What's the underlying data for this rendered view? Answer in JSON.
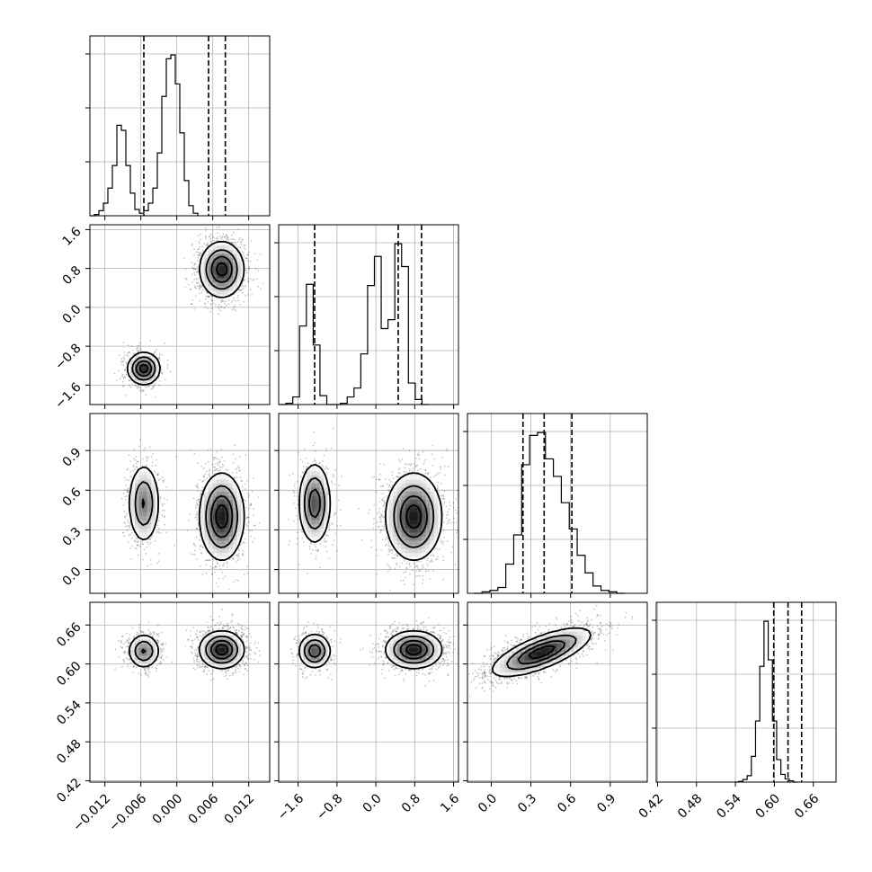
{
  "chart_data": {
    "type": "corner",
    "title": "",
    "parameters": [
      {
        "index": 0,
        "xlabel": "",
        "range": [
          -0.0145,
          0.0155
        ],
        "ticks": [
          -0.012,
          -0.006,
          0.0,
          0.006,
          0.012
        ],
        "tick_labels": [
          "−0.012",
          "−0.006",
          "0.000",
          "0.006",
          "0.012"
        ]
      },
      {
        "index": 1,
        "xlabel": "",
        "range": [
          -2.0,
          1.7
        ],
        "ticks": [
          -1.6,
          -0.8,
          0.0,
          0.8,
          1.6
        ],
        "tick_labels": [
          "−1.6",
          "−0.8",
          "0.0",
          "0.8",
          "1.6"
        ]
      },
      {
        "index": 2,
        "xlabel": "",
        "range": [
          -0.18,
          1.18
        ],
        "ticks": [
          0.0,
          0.3,
          0.6,
          0.9
        ],
        "tick_labels": [
          "0.0",
          "0.3",
          "0.6",
          "0.9"
        ]
      },
      {
        "index": 3,
        "xlabel": "",
        "range": [
          0.418,
          0.695
        ],
        "ticks": [
          0.42,
          0.48,
          0.54,
          0.6,
          0.66
        ],
        "tick_labels": [
          "0.42",
          "0.48",
          "0.54",
          "0.60",
          "0.66"
        ]
      }
    ],
    "y_tick_labels": {
      "1": [
        "−1.6",
        "−0.8",
        "0.0",
        "0.8",
        "1.6"
      ],
      "2": [
        "0.0",
        "0.3",
        "0.6",
        "0.9"
      ],
      "3": [
        "0.42",
        "0.48",
        "0.54",
        "0.60",
        "0.66"
      ]
    },
    "histograms": [
      {
        "param": 0,
        "bin_start": -0.0145,
        "bin_width": 0.00075,
        "counts": [
          0,
          1,
          4,
          10,
          22,
          40,
          72,
          68,
          40,
          18,
          5,
          2,
          4,
          10,
          22,
          50,
          95,
          125,
          128,
          105,
          66,
          28,
          8,
          2
        ],
        "quantiles": [
          -0.0055,
          0.0053,
          0.0081
        ]
      },
      {
        "param": 1,
        "bin_start": -1.99,
        "bin_width": 0.14,
        "counts": [
          0,
          1,
          6,
          62,
          95,
          47,
          7,
          0,
          0,
          1,
          6,
          13,
          40,
          94,
          117,
          60,
          67,
          127,
          109,
          17,
          4,
          0
        ],
        "quantiles": [
          -1.26,
          0.46,
          0.94
        ]
      },
      {
        "param": 2,
        "bin_start": -0.13,
        "bin_width": 0.06,
        "counts": [
          0,
          1,
          2,
          4,
          20,
          40,
          88,
          108,
          110,
          92,
          80,
          62,
          44,
          26,
          14,
          5,
          2,
          1,
          0
        ],
        "quantiles": [
          0.24,
          0.4,
          0.61
        ]
      },
      {
        "param": 3,
        "bin_start": 0.5385,
        "bin_width": 0.0065,
        "counts": [
          0,
          1,
          4,
          10,
          40,
          95,
          180,
          250,
          190,
          95,
          35,
          12,
          5,
          2,
          0
        ],
        "quantiles": [
          0.599,
          0.621,
          0.642
        ]
      }
    ],
    "modes": [
      {
        "weight": 0.3,
        "means": [
          -0.0055,
          -1.26,
          0.5,
          0.62
        ],
        "sigmas": [
          0.0013,
          0.16,
          0.15,
          0.013
        ]
      },
      {
        "weight": 0.7,
        "means": [
          0.0075,
          0.78,
          0.4,
          0.622
        ],
        "sigmas": [
          0.0018,
          0.28,
          0.16,
          0.014
        ]
      }
    ],
    "joint_overrides": {
      "2_3": {
        "means": [
          0.38,
          0.618
        ],
        "sigmas": [
          0.18,
          0.018
        ],
        "correlation": 0.72
      }
    },
    "quantile_levels": [
      0.16,
      0.5,
      0.84
    ],
    "grid": true
  }
}
